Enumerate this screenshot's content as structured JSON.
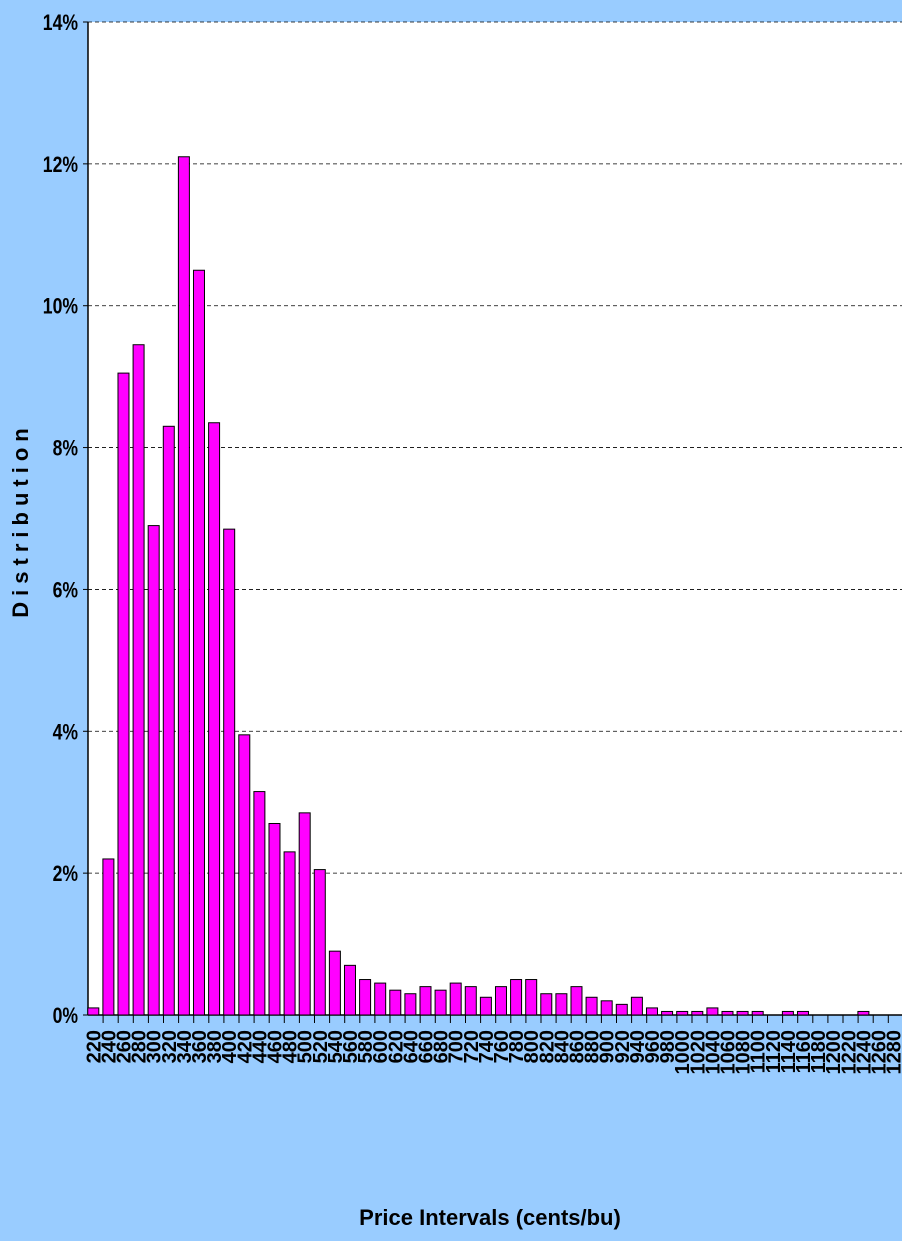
{
  "chart_data": {
    "type": "bar",
    "y_label": "Distribution",
    "x_label": "Price Intervals (cents/bu)",
    "categories": [
      "220",
      "240",
      "260",
      "280",
      "300",
      "320",
      "340",
      "360",
      "380",
      "400",
      "420",
      "440",
      "460",
      "480",
      "500",
      "520",
      "540",
      "560",
      "580",
      "600",
      "620",
      "640",
      "660",
      "680",
      "700",
      "720",
      "740",
      "760",
      "780",
      "800",
      "820",
      "840",
      "860",
      "880",
      "900",
      "920",
      "940",
      "960",
      "980",
      "1000",
      "1020",
      "1040",
      "1060",
      "1080",
      "1100",
      "1120",
      "1140",
      "1160",
      "1180",
      "1200",
      "1220",
      "1240",
      "1260",
      "1280"
    ],
    "values": [
      0.1,
      2.2,
      9.05,
      9.45,
      6.9,
      8.3,
      12.1,
      10.5,
      8.35,
      6.85,
      3.95,
      3.15,
      2.7,
      2.3,
      2.85,
      2.05,
      0.9,
      0.7,
      0.5,
      0.45,
      0.35,
      0.3,
      0.4,
      0.35,
      0.45,
      0.4,
      0.25,
      0.4,
      0.5,
      0.5,
      0.3,
      0.3,
      0.4,
      0.25,
      0.2,
      0.15,
      0.25,
      0.1,
      0.05,
      0.05,
      0.05,
      0.1,
      0.05,
      0.05,
      0.05,
      0,
      0.05,
      0.05,
      0,
      0,
      0,
      0.05,
      0,
      0
    ],
    "color": "#ff00ff",
    "ylim": [
      0,
      14
    ],
    "yticks": [
      {
        "value": 0,
        "label": "0%"
      },
      {
        "value": 2,
        "label": "2%"
      },
      {
        "value": 4,
        "label": "4%"
      },
      {
        "value": 6,
        "label": "6%"
      },
      {
        "value": 8,
        "label": "8%"
      },
      {
        "value": 10,
        "label": "10%"
      },
      {
        "value": 12,
        "label": "12%"
      },
      {
        "value": 14,
        "label": "14%"
      }
    ],
    "grid": true
  }
}
